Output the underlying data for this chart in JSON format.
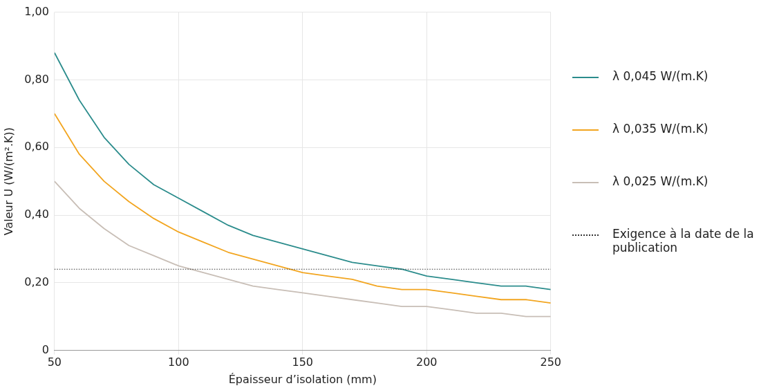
{
  "chart_data": {
    "type": "line",
    "xlabel": "Épaisseur d’isolation (mm)",
    "ylabel": "Valeur U (W/(m².K))",
    "x": [
      50,
      60,
      70,
      80,
      90,
      100,
      110,
      120,
      130,
      140,
      150,
      160,
      170,
      180,
      190,
      200,
      210,
      220,
      230,
      240,
      250
    ],
    "series": [
      {
        "name": "λ 0,045 W/(m.K)",
        "color": "#2b8c8c",
        "values": [
          0.88,
          0.74,
          0.63,
          0.55,
          0.49,
          0.45,
          0.41,
          0.37,
          0.34,
          0.32,
          0.3,
          0.28,
          0.26,
          0.25,
          0.24,
          0.22,
          0.21,
          0.2,
          0.19,
          0.19,
          0.18
        ]
      },
      {
        "name": "λ 0,035 W/(m.K)",
        "color": "#f2a51f",
        "values": [
          0.7,
          0.58,
          0.5,
          0.44,
          0.39,
          0.35,
          0.32,
          0.29,
          0.27,
          0.25,
          0.23,
          0.22,
          0.21,
          0.19,
          0.18,
          0.18,
          0.17,
          0.16,
          0.15,
          0.15,
          0.14
        ]
      },
      {
        "name": "λ 0,025 W/(m.K)",
        "color": "#c8beb6",
        "values": [
          0.5,
          0.42,
          0.36,
          0.31,
          0.28,
          0.25,
          0.23,
          0.21,
          0.19,
          0.18,
          0.17,
          0.16,
          0.15,
          0.14,
          0.13,
          0.13,
          0.12,
          0.11,
          0.11,
          0.1,
          0.1
        ]
      }
    ],
    "ref_lines": [
      {
        "axis": "y",
        "value": 0.24,
        "label": "Exigence à la date de la publication",
        "color": "#333333",
        "line_style": "dotted"
      }
    ],
    "xlim": [
      50,
      250
    ],
    "xticks": [
      50,
      100,
      150,
      200,
      250
    ],
    "ylim": [
      0,
      1
    ],
    "yticks": [
      0,
      {
        "value": 0.2,
        "label": "0,20"
      },
      {
        "value": 0.4,
        "label": "0,40"
      },
      {
        "value": 0.6,
        "label": "0,60"
      },
      {
        "value": 0.8,
        "label": "0,80"
      },
      {
        "value": 1,
        "label": "1,00"
      }
    ],
    "grid": true,
    "legend": "right",
    "marker": "none",
    "line_style": "solid"
  }
}
